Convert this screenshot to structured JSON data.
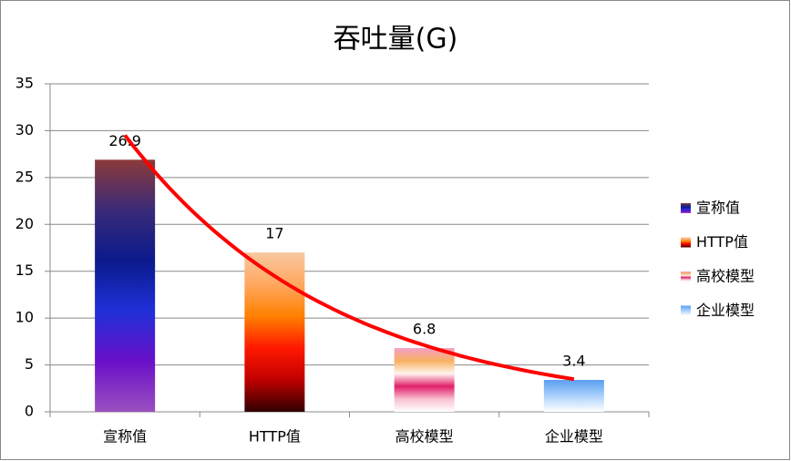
{
  "chart_data": {
    "type": "bar",
    "title": "吞吐量(G)",
    "categories": [
      "宣称值",
      "HTTP值",
      "高校模型",
      "企业模型"
    ],
    "values": [
      26.9,
      17,
      6.8,
      3.4
    ],
    "gradients": [
      [
        "#8b3a3a",
        "#3a2a78",
        "#0a1a8c",
        "#2030d8",
        "#6a10c8",
        "#9a50c0"
      ],
      [
        "#f8c8a0",
        "#ffa860",
        "#ff8000",
        "#ff1800",
        "#c00000",
        "#300000"
      ],
      [
        "#f4a0c8",
        "#f8b060",
        "#fff4ee",
        "#e0206a",
        "#f8c0d0",
        "#ffffff"
      ],
      [
        "#5a9ef0",
        "#8ec0f8",
        "#c8e0fc",
        "#ffffff"
      ]
    ],
    "trendline": {
      "kind": "exponential",
      "color": "#ff0000"
    },
    "ylim": [
      0,
      35
    ],
    "yticks": [
      0,
      5,
      10,
      15,
      20,
      25,
      30,
      35
    ],
    "grid": true,
    "legend": "right"
  }
}
